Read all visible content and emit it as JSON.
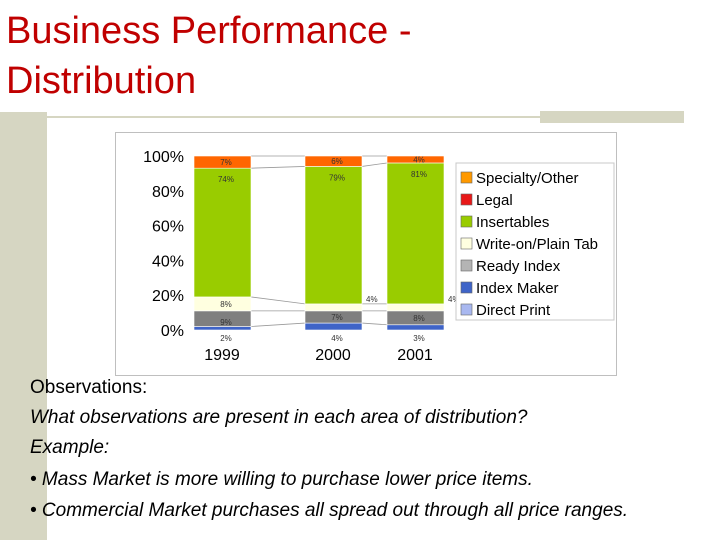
{
  "slide": {
    "title_line1": "Business Performance -",
    "title_line2": "Distribution",
    "title_color": "#c00000"
  },
  "notes": {
    "heading": "Observations:",
    "question": "What observations are present in each area of distribution?",
    "example": "Example:",
    "bullets": [
      "• Mass Market is more willing to purchase lower price items.",
      "• Commercial Market purchases all spread out through all price ranges."
    ]
  },
  "chart_data": {
    "type": "bar",
    "stacked": true,
    "categories": [
      "1999",
      "2000",
      "2001"
    ],
    "y_ticks": [
      "0%",
      "20%",
      "40%",
      "60%",
      "80%",
      "100%"
    ],
    "ylim": [
      0,
      100
    ],
    "legend_position": "right",
    "series": [
      {
        "name": "Direct Print",
        "color": "#3f64c8",
        "values": [
          2,
          4,
          3
        ],
        "labels": [
          "2%",
          "4%",
          "3%"
        ]
      },
      {
        "name": "Index Maker",
        "color": "#7f7f7f",
        "values": [
          9,
          7,
          8
        ],
        "labels": [
          "9%",
          "7%",
          "8%"
        ]
      },
      {
        "name": "Ready Index",
        "color": "#ffffe0",
        "values": [
          8,
          4,
          4
        ],
        "labels": [
          "8%",
          "4%",
          "4%"
        ]
      },
      {
        "name": "Write-on/Plain Tab",
        "color": "#99cc00",
        "values": [
          74,
          79,
          81
        ],
        "labels": [
          "74%",
          "79%",
          "81%"
        ]
      },
      {
        "name": "Insertables",
        "color": "#ff6600",
        "values": [
          7,
          6,
          4
        ],
        "labels": [
          "7%",
          "6%",
          "4%"
        ]
      }
    ],
    "legend": [
      {
        "label": "Specialty/Other",
        "color": "#ff9900"
      },
      {
        "label": "Legal",
        "color": "#e81818"
      },
      {
        "label": "Insertables",
        "color": "#99cc00"
      },
      {
        "label": "Write-on/Plain Tab",
        "color": "#ffffe0"
      },
      {
        "label": "Ready Index",
        "color": "#b4b4b4"
      },
      {
        "label": "Index Maker",
        "color": "#3f64c8"
      },
      {
        "label": "Direct Print",
        "color": "#a9b8f0"
      }
    ]
  }
}
